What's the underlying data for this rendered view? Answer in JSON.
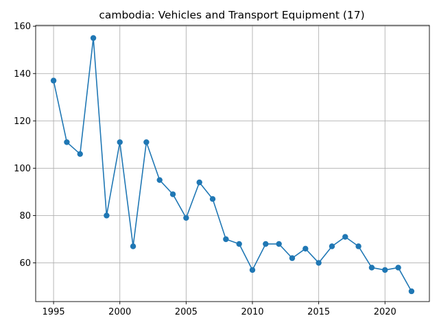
{
  "chart_data": {
    "type": "line",
    "title": "cambodia: Vehicles and Transport Equipment (17)",
    "xlabel": "",
    "ylabel": "",
    "x": [
      1995,
      1996,
      1997,
      1998,
      1999,
      2000,
      2001,
      2002,
      2003,
      2004,
      2005,
      2006,
      2007,
      2008,
      2009,
      2010,
      2011,
      2012,
      2013,
      2014,
      2015,
      2016,
      2017,
      2018,
      2019,
      2020,
      2021,
      2022
    ],
    "series": [
      {
        "values": [
          137,
          111,
          106,
          155,
          80,
          111,
          67,
          111,
          95,
          89,
          79,
          94,
          87,
          70,
          68,
          57,
          68,
          68,
          62,
          66,
          60,
          67,
          71,
          67,
          58,
          57,
          58,
          48
        ],
        "color": "#1f77b4",
        "marker": "circle"
      }
    ],
    "xlim": [
      1993.65,
      1996.35
    ],
    "ylim": [
      43.65,
      160.35
    ],
    "xticks": [
      1995,
      2000,
      2005,
      2010,
      2015,
      2020
    ],
    "yticks": [
      60,
      80,
      100,
      120,
      140,
      160
    ],
    "grid": true,
    "legend": "none"
  }
}
